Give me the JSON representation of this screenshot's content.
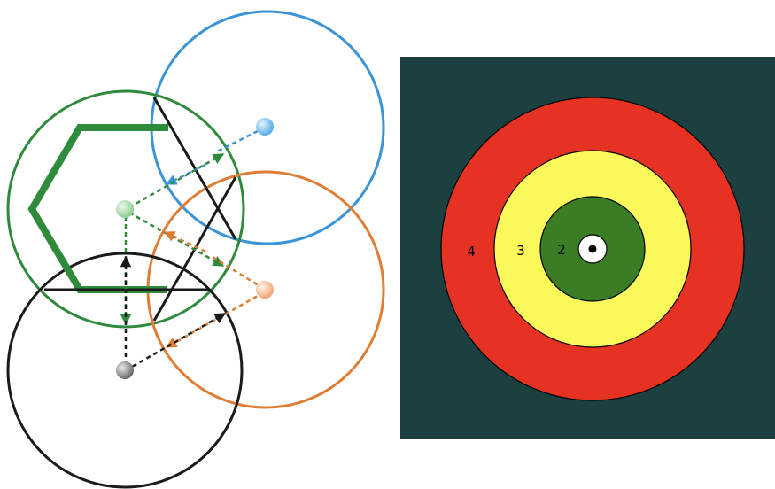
{
  "colors": {
    "blue": "#3a93d6",
    "green": "#2f8a3b",
    "orange": "#e07d35",
    "black": "#1a1a1a",
    "panel_bg": "#1c3f40",
    "ring_red": "#e63222",
    "ring_yellow": "#fbf95a",
    "ring_green": "#3a7d25",
    "ring_white": "#ffffff"
  },
  "target": {
    "rings": [
      {
        "label": "4",
        "color": "#e63222"
      },
      {
        "label": "3",
        "color": "#fbf95a"
      },
      {
        "label": "2",
        "color": "#3a7d25"
      }
    ]
  }
}
